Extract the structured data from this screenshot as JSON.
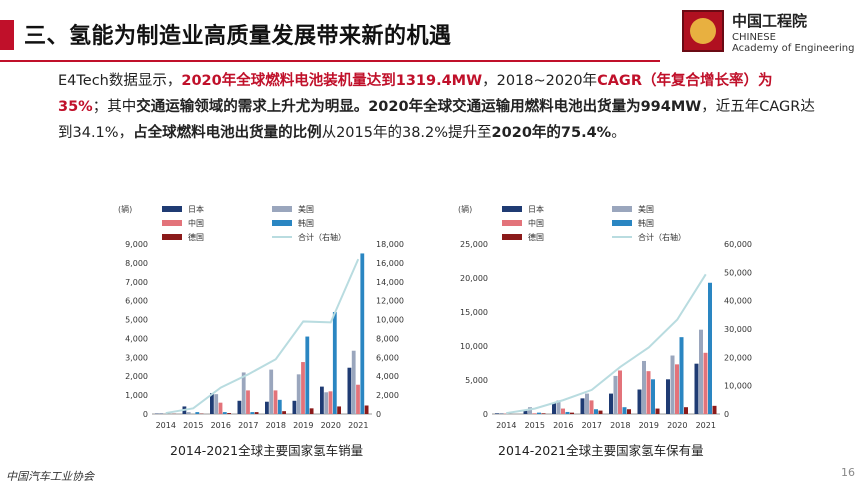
{
  "slide": {
    "title": "三、氢能为制造业高质量发展带来新的机遇",
    "logo_cn": "中国工程院",
    "logo_en1": "CHINESE",
    "logo_en2": "Academy of Engineering",
    "paragraph": [
      {
        "t": "E4Tech数据显示，",
        "s": "n"
      },
      {
        "t": "2020年全球燃料电池装机量达到1319.4MW",
        "s": "red"
      },
      {
        "t": "，2018~2020年",
        "s": "n"
      },
      {
        "t": "CAGR（年复合增长率）为35%",
        "s": "red"
      },
      {
        "t": "；其中",
        "s": "n"
      },
      {
        "t": "交通运输领域的需求上升尤为明显。2020年全球交通运输用燃料电池出货量为994MW",
        "s": "b"
      },
      {
        "t": "，近五年CAGR达到34.1%，",
        "s": "n"
      },
      {
        "t": "占全球燃料电池出货量的比例",
        "s": "b"
      },
      {
        "t": "从2015年的38.2%提升至",
        "s": "n"
      },
      {
        "t": "2020年的75.4%",
        "s": "b"
      },
      {
        "t": "。",
        "s": "n"
      }
    ],
    "footer": "中国汽车工业协会",
    "page": "16"
  },
  "colors": {
    "japan": "#1f3b73",
    "usa": "#9aa6bd",
    "china": "#e3737a",
    "korea": "#2a86c2",
    "germany": "#8b1a1a",
    "total": "#b9dce0"
  },
  "chart_data": [
    {
      "type": "bar",
      "caption": "2014-2021全球主要国家氢车销量",
      "unit": "(辆)",
      "categories": [
        "2014",
        "2015",
        "2016",
        "2017",
        "2018",
        "2019",
        "2020",
        "2021"
      ],
      "ylim": [
        0,
        9000
      ],
      "yticks": [
        "0",
        "1,000",
        "2,000",
        "3,000",
        "4,000",
        "5,000",
        "6,000",
        "7,000",
        "8,000",
        "9,000"
      ],
      "y2lim": [
        0,
        18000
      ],
      "y2ticks": [
        "0",
        "2,000",
        "4,000",
        "6,000",
        "8,000",
        "10,000",
        "12,000",
        "14,000",
        "16,000",
        "18,000"
      ],
      "series": [
        {
          "name": "日本",
          "color_key": "japan",
          "values": [
            20,
            400,
            1100,
            700,
            650,
            700,
            1450,
            2450
          ]
        },
        {
          "name": "美国",
          "color_key": "usa",
          "values": [
            50,
            100,
            1050,
            2200,
            2350,
            2100,
            1150,
            3350
          ]
        },
        {
          "name": "中国",
          "color_key": "china",
          "values": [
            0,
            0,
            600,
            1250,
            1250,
            2750,
            1200,
            1550
          ]
        },
        {
          "name": "韩国",
          "color_key": "korea",
          "values": [
            0,
            100,
            100,
            100,
            750,
            4100,
            5400,
            8500
          ]
        },
        {
          "name": "德国",
          "color_key": "germany",
          "values": [
            10,
            20,
            50,
            100,
            150,
            300,
            400,
            450
          ]
        }
      ],
      "total": {
        "name": "合计（右轴）",
        "color_key": "total",
        "values": [
          100,
          600,
          2800,
          4200,
          5800,
          9800,
          9700,
          16400
        ]
      }
    },
    {
      "type": "bar",
      "caption": "2014-2021全球主要国家氢车保有量",
      "unit": "(辆)",
      "categories": [
        "2014",
        "2015",
        "2016",
        "2017",
        "2018",
        "2019",
        "2020",
        "2021"
      ],
      "ylim": [
        0,
        25000
      ],
      "yticks": [
        "0",
        "5,000",
        "10,000",
        "15,000",
        "20,000",
        "25,000"
      ],
      "y2lim": [
        0,
        60000
      ],
      "y2ticks": [
        "0",
        "10,000",
        "20,000",
        "30,000",
        "40,000",
        "50,000",
        "60,000"
      ],
      "series": [
        {
          "name": "日本",
          "color_key": "japan",
          "values": [
            100,
            500,
            1600,
            2300,
            3000,
            3600,
            5100,
            7400
          ]
        },
        {
          "name": "美国",
          "color_key": "usa",
          "values": [
            150,
            1000,
            2000,
            3000,
            5600,
            7800,
            8600,
            12400
          ]
        },
        {
          "name": "中国",
          "color_key": "china",
          "values": [
            50,
            100,
            800,
            2000,
            6400,
            6300,
            7300,
            9000
          ]
        },
        {
          "name": "韩国",
          "color_key": "korea",
          "values": [
            0,
            200,
            300,
            700,
            1000,
            5100,
            11300,
            19300
          ]
        },
        {
          "name": "德国",
          "color_key": "germany",
          "values": [
            0,
            100,
            200,
            500,
            700,
            800,
            1000,
            1200
          ]
        }
      ],
      "total": {
        "name": "合计（右轴）",
        "color_key": "total",
        "values": [
          300,
          1900,
          4900,
          8500,
          16600,
          23500,
          33300,
          49300
        ]
      }
    }
  ]
}
